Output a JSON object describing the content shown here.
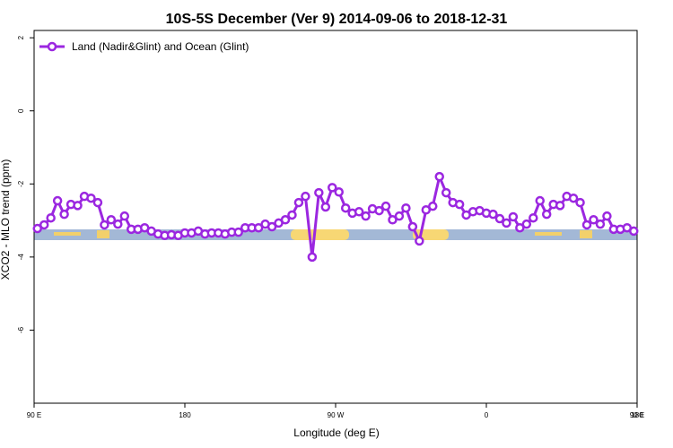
{
  "chart_data": {
    "type": "line",
    "title": "10S-5S December (Ver 9)   2014-09-06 to 2018-12-31",
    "x_label": "Longitude (deg E)",
    "y_label": "XCO2 - MLO trend (ppm)",
    "xlim": [
      90,
      450
    ],
    "ylim": [
      -8,
      2.2
    ],
    "xticks": [
      {
        "value": 90,
        "label": "90 E"
      },
      180,
      {
        "value": 270,
        "label": "90 W"
      },
      {
        "value": 360,
        "label": "0"
      },
      {
        "value": 450,
        "label": "90 E"
      },
      {
        "value": 540,
        "label": "180"
      }
    ],
    "yticks": [
      -6,
      -4,
      -2,
      0,
      2
    ],
    "legend": "top-left",
    "x": [
      92,
      96,
      100,
      104,
      108,
      112,
      116,
      120,
      124,
      128,
      132,
      136,
      140,
      144,
      148,
      152,
      156,
      160,
      164,
      168,
      172,
      176,
      180,
      184,
      188,
      192,
      196,
      200,
      204,
      208,
      212,
      216,
      220,
      224,
      228,
      232,
      236,
      240,
      244,
      248,
      252,
      256,
      260,
      264,
      268,
      272,
      276,
      280,
      284,
      288,
      292,
      296,
      300,
      304,
      308,
      312,
      316,
      320,
      324,
      328,
      332,
      336,
      340,
      344,
      348,
      352,
      356,
      360,
      364,
      368,
      372,
      376,
      380,
      384,
      388,
      392,
      396,
      400,
      404,
      408,
      412,
      416,
      420,
      424,
      428,
      432,
      436,
      440,
      444,
      448
    ],
    "series": [
      {
        "name": "Land (Nadir&Glint) and Ocean (Glint)",
        "color": "#9b27e0",
        "values": [
          -3.22,
          -3.12,
          -2.93,
          -2.46,
          -2.83,
          -2.56,
          -2.59,
          -2.34,
          -2.39,
          -2.51,
          -3.12,
          -2.98,
          -3.1,
          -2.88,
          -3.24,
          -3.24,
          -3.2,
          -3.29,
          -3.37,
          -3.41,
          -3.39,
          -3.41,
          -3.34,
          -3.34,
          -3.29,
          -3.37,
          -3.34,
          -3.34,
          -3.37,
          -3.32,
          -3.32,
          -3.2,
          -3.2,
          -3.2,
          -3.1,
          -3.17,
          -3.07,
          -2.98,
          -2.85,
          -2.51,
          -2.34,
          -4.0,
          -2.24,
          -2.63,
          -2.1,
          -2.22,
          -2.66,
          -2.8,
          -2.76,
          -2.88,
          -2.68,
          -2.73,
          -2.61,
          -2.98,
          -2.88,
          -2.66,
          -3.17,
          -3.56,
          -2.71,
          -2.61,
          -1.8,
          -2.24,
          -2.51,
          -2.56,
          -2.85,
          -2.76,
          -2.73,
          -2.8,
          -2.83,
          -2.95,
          -3.07,
          -2.9,
          -3.2,
          -3.1,
          -2.93,
          -2.46,
          -2.83,
          -2.56,
          -2.59,
          -2.34,
          -2.39,
          -2.51,
          -3.12,
          -2.98,
          -3.1,
          -2.88,
          -3.24,
          -3.24,
          -3.2,
          -3.29
        ]
      }
    ]
  }
}
